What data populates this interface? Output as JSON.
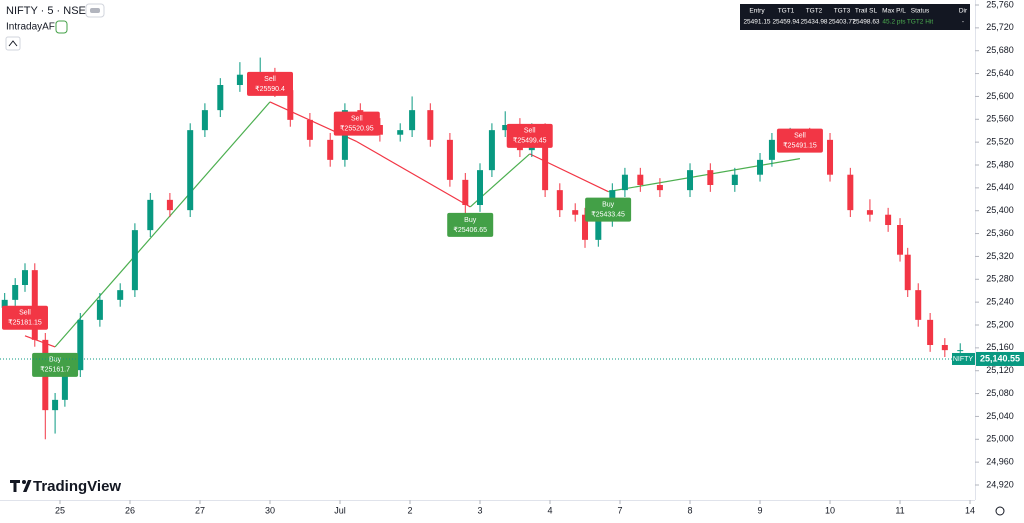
{
  "chart_data": {
    "type": "candlestick",
    "title": "NIFTY · 5 · NSE",
    "indicator": "IntradayAFL",
    "brand": "TradingView",
    "up_color": "#089981",
    "down_color": "#f23645",
    "x": [
      -0.79,
      -0.64,
      -0.5,
      -0.36,
      -0.21,
      -0.07,
      0.07,
      0.29,
      0.57,
      0.86,
      1.07,
      1.29,
      1.57,
      1.86,
      2.07,
      2.29,
      2.57,
      2.86,
      3.07,
      3.29,
      3.57,
      3.86,
      4.07,
      4.29,
      4.57,
      4.86,
      5.03,
      5.29,
      5.57,
      5.79,
      6.0,
      6.17,
      6.36,
      6.57,
      6.74,
      6.93,
      7.14,
      7.36,
      7.5,
      7.69,
      7.89,
      8.07,
      8.29,
      8.57,
      9.0,
      9.29,
      9.64,
      10.0,
      10.17,
      10.43,
      10.71,
      11.0,
      11.29,
      11.57,
      11.83,
      12.0,
      12.11,
      12.26,
      12.43,
      12.64,
      12.86
    ],
    "open": [
      25230,
      25244,
      25270,
      25296,
      25174,
      25051,
      25069,
      25121,
      25209,
      25244,
      25261,
      25366,
      25419,
      25401,
      25541,
      25576,
      25620,
      25638,
      25638,
      25611,
      25559,
      25524,
      25489,
      25576,
      25550,
      25533,
      25541,
      25576,
      25524,
      25454,
      25410,
      25471,
      25541,
      25550,
      25506,
      25541,
      25436,
      25401,
      25393,
      25349,
      25384,
      25436,
      25463,
      25445,
      25436,
      25471,
      25445,
      25463,
      25489,
      25524,
      25533,
      25524,
      25463,
      25401,
      25393,
      25375,
      25323,
      25261,
      25209,
      25165,
      25156
    ],
    "high": [
      25256,
      25282,
      25308,
      25308,
      25186,
      25081,
      25133,
      25221,
      25256,
      25273,
      25378,
      25431,
      25431,
      25553,
      25588,
      25632,
      25660,
      25668,
      25650,
      25623,
      25571,
      25536,
      25588,
      25588,
      25562,
      25553,
      25600,
      25588,
      25536,
      25466,
      25483,
      25553,
      25574,
      25562,
      25553,
      25553,
      25448,
      25413,
      25405,
      25396,
      25448,
      25475,
      25475,
      25457,
      25483,
      25483,
      25475,
      25501,
      25536,
      25545,
      25545,
      25536,
      25475,
      25420,
      25405,
      25387,
      25335,
      25273,
      25221,
      25177,
      25168
    ],
    "low": [
      25218,
      25232,
      25258,
      25162,
      25000,
      25010,
      25057,
      25109,
      25197,
      25232,
      25249,
      25354,
      25389,
      25389,
      25529,
      25564,
      25608,
      25626,
      25599,
      25547,
      25512,
      25477,
      25477,
      25538,
      25521,
      25521,
      25529,
      25512,
      25442,
      25390,
      25398,
      25459,
      25529,
      25494,
      25494,
      25424,
      25389,
      25381,
      25335,
      25337,
      25372,
      25424,
      25433,
      25424,
      25424,
      25433,
      25433,
      25451,
      25477,
      25512,
      25512,
      25451,
      25389,
      25381,
      25363,
      25311,
      25249,
      25197,
      25153,
      25144,
      25140
    ],
    "close": [
      25244,
      25270,
      25296,
      25174,
      25051,
      25069,
      25121,
      25209,
      25244,
      25261,
      25366,
      25419,
      25401,
      25541,
      25576,
      25620,
      25638,
      25638,
      25611,
      25559,
      25524,
      25489,
      25576,
      25550,
      25533,
      25541,
      25576,
      25524,
      25454,
      25410,
      25471,
      25541,
      25550,
      25506,
      25541,
      25436,
      25401,
      25393,
      25349,
      25384,
      25436,
      25463,
      25445,
      25436,
      25471,
      25445,
      25463,
      25489,
      25524,
      25533,
      25524,
      25463,
      25401,
      25393,
      25375,
      25323,
      25261,
      25209,
      25165,
      25156,
      25156
    ],
    "xlim": [
      -0.857,
      13.071
    ],
    "xticks": [
      {
        "value": 0,
        "label": "25"
      },
      {
        "value": 1,
        "label": "26"
      },
      {
        "value": 2,
        "label": "27"
      },
      {
        "value": 3,
        "label": "30"
      },
      {
        "value": 4,
        "label": "Jul"
      },
      {
        "value": 5,
        "label": "2"
      },
      {
        "value": 6,
        "label": "3"
      },
      {
        "value": 7,
        "label": "4"
      },
      {
        "value": 8,
        "label": "7"
      },
      {
        "value": 9,
        "label": "8"
      },
      {
        "value": 10,
        "label": "9"
      },
      {
        "value": 11,
        "label": "10"
      },
      {
        "value": 12,
        "label": "11"
      },
      {
        "value": 13,
        "label": "14"
      }
    ],
    "ylim": [
      24893.75,
      25768.75
    ],
    "yticks": [
      {
        "value": 24920,
        "label": "24,920"
      },
      {
        "value": 24960,
        "label": "24,960"
      },
      {
        "value": 25000,
        "label": "25,000"
      },
      {
        "value": 25040,
        "label": "25,040"
      },
      {
        "value": 25080,
        "label": "25,080"
      },
      {
        "value": 25120,
        "label": "25,120"
      },
      {
        "value": 25160,
        "label": "25,160"
      },
      {
        "value": 25200,
        "label": "25,200"
      },
      {
        "value": 25240,
        "label": "25,240"
      },
      {
        "value": 25280,
        "label": "25,280"
      },
      {
        "value": 25320,
        "label": "25,320"
      },
      {
        "value": 25360,
        "label": "25,360"
      },
      {
        "value": 25400,
        "label": "25,400"
      },
      {
        "value": 25440,
        "label": "25,440"
      },
      {
        "value": 25480,
        "label": "25,480"
      },
      {
        "value": 25520,
        "label": "25,520"
      },
      {
        "value": 25560,
        "label": "25,560"
      },
      {
        "value": 25600,
        "label": "25,600"
      },
      {
        "value": 25640,
        "label": "25,640"
      },
      {
        "value": 25680,
        "label": "25,680"
      },
      {
        "value": 25720,
        "label": "25,720"
      },
      {
        "value": 25760,
        "label": "25,760"
      }
    ],
    "last_price": {
      "name": "NIFTY",
      "value": 25140.55,
      "value_label": "25,140.55",
      "color": "#089981"
    },
    "signal_colors": {
      "Sell": "#f23645",
      "Buy": "#43a047"
    },
    "signals": [
      {
        "type": "Sell",
        "x": -0.5,
        "value": 25181.15,
        "price_label": "₹25181.15"
      },
      {
        "type": "Buy",
        "x": -0.07,
        "value": 25161.7,
        "price_label": "₹25161.7"
      },
      {
        "type": "Sell",
        "x": 3.0,
        "value": 25590.4,
        "price_label": "₹25590.4"
      },
      {
        "type": "Sell",
        "x": 4.24,
        "value": 25520.95,
        "price_label": "₹25520.95"
      },
      {
        "type": "Buy",
        "x": 5.86,
        "value": 25406.65,
        "price_label": "₹25406.65"
      },
      {
        "type": "Sell",
        "x": 6.71,
        "value": 25499.45,
        "price_label": "₹25499.45"
      },
      {
        "type": "Buy",
        "x": 7.83,
        "value": 25433.45,
        "price_label": "₹25433.45"
      },
      {
        "type": "Sell",
        "x": 10.57,
        "value": 25491.15,
        "price_label": "₹25491.15"
      }
    ],
    "table": {
      "header": [
        "Entry",
        "TGT1",
        "TGT2",
        "TGT3",
        "Trail SL",
        "Max P/L",
        "Status",
        "Dir"
      ],
      "row": [
        "25491.15",
        "25459.94",
        "25434.98",
        "25403.77",
        "25498.63",
        "45.2 pts",
        "TGT2 Hit",
        "-"
      ]
    }
  }
}
